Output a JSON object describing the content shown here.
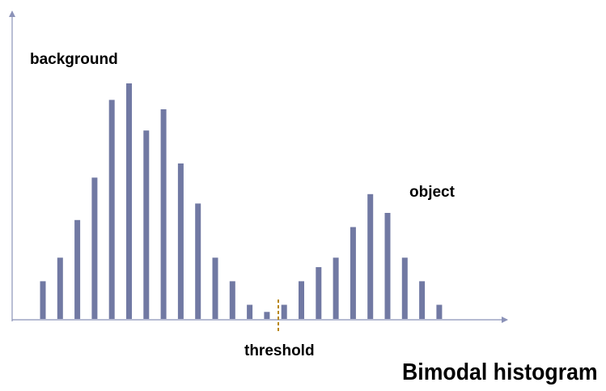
{
  "chart_data": {
    "type": "bar",
    "title": "Bimodal histogram",
    "xlabel": "",
    "ylabel": "",
    "ylim": [
      0,
      100
    ],
    "grid": false,
    "legend": "none",
    "values": [
      16,
      26,
      42,
      60,
      93,
      100,
      80,
      89,
      66,
      49,
      26,
      16,
      6,
      3,
      6,
      16,
      22,
      26,
      39,
      53,
      45,
      26,
      16,
      6
    ],
    "annotations": {
      "background": "background",
      "object": "object",
      "threshold": "threshold"
    },
    "threshold_after_bar": 13
  },
  "colors": {
    "bar": "#7179a3",
    "axis": "#8b92b8",
    "threshold_line": "#b8860b",
    "text": "#000000"
  }
}
